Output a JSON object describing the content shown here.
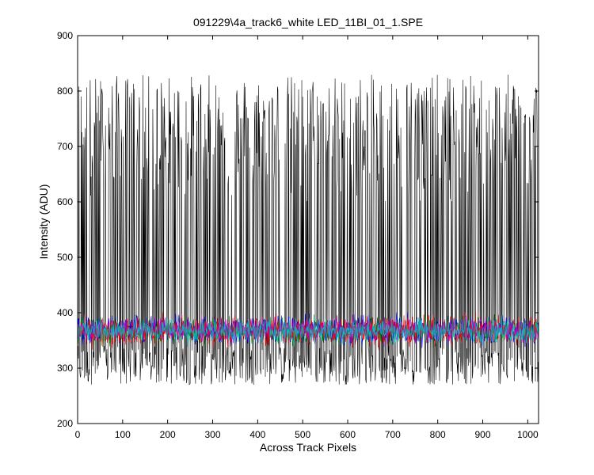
{
  "chart_data": {
    "type": "line",
    "title": "091229\\4a_track6_white LED_11BI_01_1.SPE",
    "xlabel": "Across Track Pixels",
    "ylabel": "Intensity (ADU)",
    "xlim": [
      0,
      1024
    ],
    "ylim": [
      200,
      900
    ],
    "xticks": [
      0,
      100,
      200,
      300,
      400,
      500,
      600,
      700,
      800,
      900,
      1000
    ],
    "yticks": [
      200,
      300,
      400,
      500,
      600,
      700,
      800,
      900
    ],
    "grid": false,
    "legend": "none",
    "series": [
      {
        "color": "#000000",
        "low_range": [
          270,
          340
        ],
        "high_range": [
          600,
          830
        ],
        "points": 1024
      },
      {
        "color": "#0000ff",
        "range": [
          330,
          405
        ],
        "points": 1024
      },
      {
        "color": "#008000",
        "range": [
          335,
          400
        ],
        "points": 1024
      },
      {
        "color": "#ff0000",
        "range": [
          330,
          405
        ],
        "points": 1024
      },
      {
        "color": "#bf00bf",
        "range": [
          340,
          400
        ],
        "points": 1024
      },
      {
        "color": "#00bfbf",
        "range": [
          335,
          400
        ],
        "points": 1024
      }
    ]
  }
}
